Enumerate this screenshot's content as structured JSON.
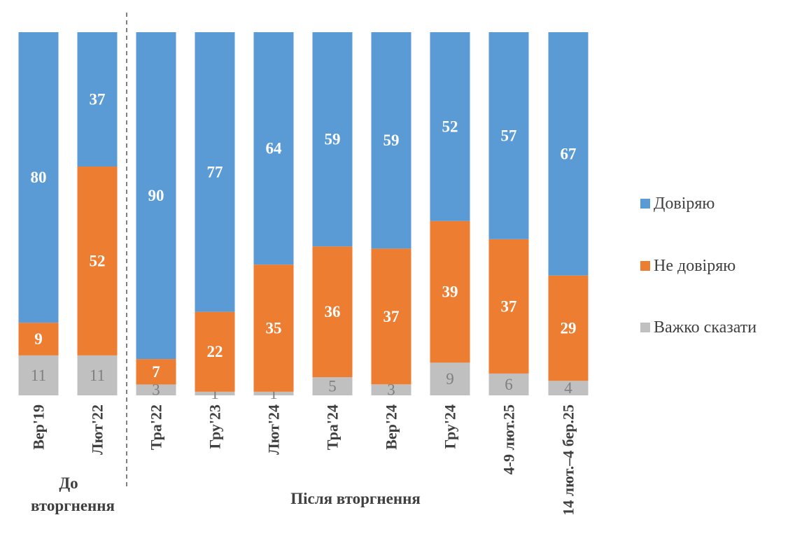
{
  "chart_data": {
    "type": "bar",
    "stacked": true,
    "categories": [
      "Вер'19",
      "Лют'22",
      "Тра'22",
      "Гру'23",
      "Лют'24",
      "Тра'24",
      "Вер'24",
      "Гру'24",
      "4-9 лют.25",
      "14 лют.–4 бер.25"
    ],
    "series": [
      {
        "name": "Довіряю",
        "color": "#5B9BD5",
        "values": [
          80,
          37,
          90,
          77,
          64,
          59,
          59,
          52,
          57,
          67
        ]
      },
      {
        "name": "Не довіряю",
        "color": "#ED7D31",
        "values": [
          9,
          52,
          7,
          22,
          35,
          36,
          37,
          39,
          37,
          29
        ]
      },
      {
        "name": "Важко сказати",
        "color": "#C0C0C0",
        "values": [
          11,
          11,
          3,
          1,
          1,
          5,
          3,
          9,
          6,
          4
        ]
      }
    ],
    "groups": [
      {
        "label_lines": [
          "До",
          "вторгнення"
        ],
        "categories": 2
      },
      {
        "label_lines": [
          "Після вторгнення"
        ],
        "categories": 8
      }
    ],
    "legend_position": "right",
    "grid": false
  }
}
